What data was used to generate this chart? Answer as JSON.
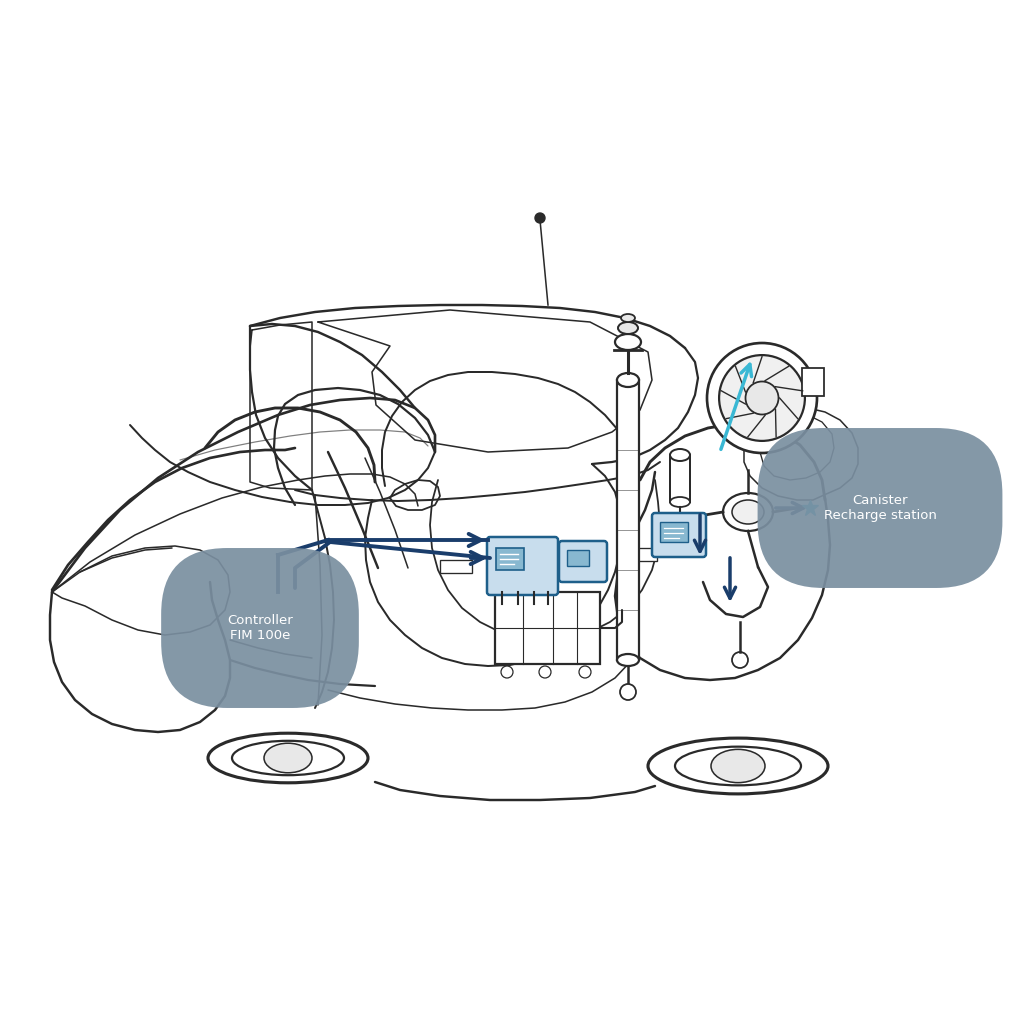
{
  "background_color": "#ffffff",
  "car_color": "#2a2a2a",
  "car_lw": 1.6,
  "comp_color": "#1e5f8a",
  "arrow_dark": "#1a3d6b",
  "arrow_cyan": "#3ab8d4",
  "label_bg": "#7a8fa0",
  "label_fg": "#ffffff",
  "label1_text": "Controller\nFIM 100e",
  "label2_text": "Canister\nRecharge station",
  "figsize": [
    10.24,
    10.24
  ],
  "dpi": 100
}
